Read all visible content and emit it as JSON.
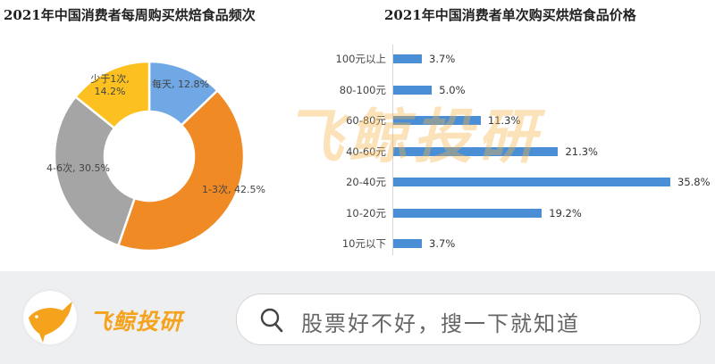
{
  "colors": {
    "blue": "#6fa8e4",
    "orange": "#f08a24",
    "gray": "#a5a5a5",
    "yellow": "#fcc020",
    "bar": "#4a8fd6",
    "brand": "#f5a21c"
  },
  "watermark": {
    "text": "飞鲸投研"
  },
  "footer": {
    "brand_name": "飞鲸投研",
    "search_placeholder": "股票好不好，搜一下就知道"
  },
  "chart_data": [
    {
      "type": "pie",
      "subtype": "donut",
      "title": "2021年中国消费者每周购买烘焙食品频次",
      "categories": [
        "每天",
        "1-3次",
        "4-6次",
        "少于1次"
      ],
      "values": [
        12.8,
        42.5,
        30.5,
        14.2
      ],
      "labels": [
        "每天, 12.8%",
        "1-3次, 42.5%",
        "4-6次, 30.5%",
        "少于1次, 14.2%"
      ],
      "colors": [
        "#6fa8e4",
        "#f08a24",
        "#a5a5a5",
        "#fcc020"
      ],
      "legend": "none (inline data labels)"
    },
    {
      "type": "bar",
      "orientation": "horizontal",
      "title": "2021年中国消费者单次购买烘焙食品价格",
      "categories": [
        "100元以上",
        "80-100元",
        "60-80元",
        "40-60元",
        "20-40元",
        "10-20元",
        "10元以下"
      ],
      "values": [
        3.7,
        5.0,
        11.3,
        21.3,
        35.8,
        19.2,
        3.7
      ],
      "value_labels": [
        "3.7%",
        "5.0%",
        "11.3%",
        "21.3%",
        "35.8%",
        "19.2%",
        "3.7%"
      ],
      "xlabel": "",
      "ylabel": "",
      "grid": false,
      "color": "#4a8fd6"
    }
  ]
}
